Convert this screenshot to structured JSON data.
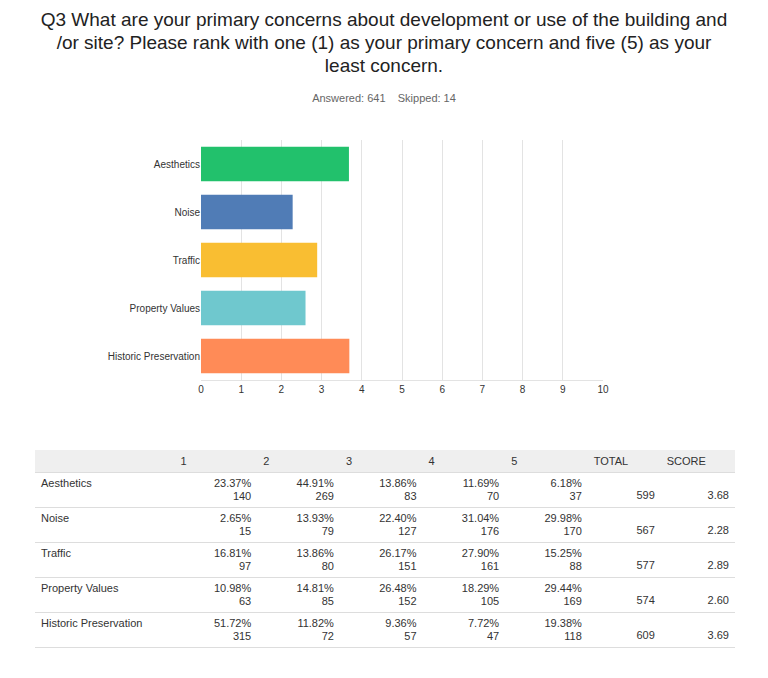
{
  "chart_data": {
    "type": "bar",
    "title": "Q3 What are your primary concerns about development or use of the building and /or site? Please rank with one (1) as your primary concern and five (5) as your least concern.",
    "subtitle": "Answered: 641    Skipped: 14",
    "orientation": "horizontal",
    "categories": [
      "Aesthetics",
      "Noise",
      "Traffic",
      "Property Values",
      "Historic Preservation"
    ],
    "values": [
      3.68,
      2.28,
      2.89,
      2.6,
      3.69
    ],
    "colors": [
      "#22c16c",
      "#507cb6",
      "#f9be32",
      "#6fc8ce",
      "#ff8b57"
    ],
    "xlim": [
      0,
      10
    ],
    "xticks": [
      0,
      1,
      2,
      3,
      4,
      5,
      6,
      7,
      8,
      9,
      10
    ],
    "grid": true
  },
  "table": {
    "header": [
      "",
      "1",
      "2",
      "3",
      "4",
      "5",
      "TOTAL",
      "SCORE"
    ],
    "rows": [
      {
        "label": "Aesthetics",
        "cells": [
          [
            "23.37%",
            "140"
          ],
          [
            "44.91%",
            "269"
          ],
          [
            "13.86%",
            "83"
          ],
          [
            "11.69%",
            "70"
          ],
          [
            "6.18%",
            "37"
          ]
        ],
        "total": "599",
        "score": "3.68"
      },
      {
        "label": "Noise",
        "cells": [
          [
            "2.65%",
            "15"
          ],
          [
            "13.93%",
            "79"
          ],
          [
            "22.40%",
            "127"
          ],
          [
            "31.04%",
            "176"
          ],
          [
            "29.98%",
            "170"
          ]
        ],
        "total": "567",
        "score": "2.28"
      },
      {
        "label": "Traffic",
        "cells": [
          [
            "16.81%",
            "97"
          ],
          [
            "13.86%",
            "80"
          ],
          [
            "26.17%",
            "151"
          ],
          [
            "27.90%",
            "161"
          ],
          [
            "15.25%",
            "88"
          ]
        ],
        "total": "577",
        "score": "2.89"
      },
      {
        "label": "Property Values",
        "cells": [
          [
            "10.98%",
            "63"
          ],
          [
            "14.81%",
            "85"
          ],
          [
            "26.48%",
            "152"
          ],
          [
            "18.29%",
            "105"
          ],
          [
            "29.44%",
            "169"
          ]
        ],
        "total": "574",
        "score": "2.60"
      },
      {
        "label": "Historic Preservation",
        "cells": [
          [
            "51.72%",
            "315"
          ],
          [
            "11.82%",
            "72"
          ],
          [
            "9.36%",
            "57"
          ],
          [
            "7.72%",
            "47"
          ],
          [
            "19.38%",
            "118"
          ]
        ],
        "total": "609",
        "score": "3.69"
      }
    ]
  }
}
